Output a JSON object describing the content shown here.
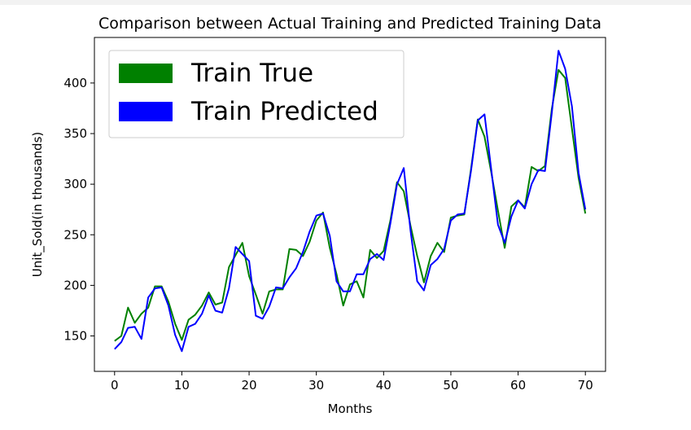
{
  "chart_data": {
    "type": "line",
    "title": "Comparison between Actual Training and Predicted Training Data",
    "xlabel": "Months",
    "ylabel": "Unit_Sold(in thousands)",
    "xlim": [
      -3,
      73
    ],
    "ylim": [
      115,
      445
    ],
    "xticks": [
      0,
      10,
      20,
      30,
      40,
      50,
      60,
      70
    ],
    "yticks": [
      150,
      200,
      250,
      300,
      350,
      400
    ],
    "legend_position": "top-left",
    "grid": false,
    "x": [
      0,
      1,
      2,
      3,
      4,
      5,
      6,
      7,
      8,
      9,
      10,
      11,
      12,
      13,
      14,
      15,
      16,
      17,
      18,
      19,
      20,
      21,
      22,
      23,
      24,
      25,
      26,
      27,
      28,
      29,
      30,
      31,
      32,
      33,
      34,
      35,
      36,
      37,
      38,
      39,
      40,
      41,
      42,
      43,
      44,
      45,
      46,
      47,
      48,
      49,
      50,
      51,
      52,
      53,
      54,
      55,
      56,
      57,
      58,
      59,
      60,
      61,
      62,
      63,
      64,
      65,
      66,
      67,
      68,
      69,
      70
    ],
    "series": [
      {
        "name": "Train True",
        "color": "#008000",
        "values": [
          145,
          150,
          178,
          163,
          172,
          178,
          199,
          199,
          184,
          162,
          146,
          166,
          171,
          180,
          193,
          181,
          183,
          218,
          230,
          242,
          209,
          191,
          172,
          194,
          196,
          196,
          236,
          235,
          229,
          243,
          264,
          272,
          237,
          211,
          180,
          201,
          204,
          188,
          235,
          227,
          234,
          264,
          302,
          293,
          259,
          229,
          203,
          229,
          242,
          233,
          267,
          269,
          270,
          315,
          364,
          347,
          312,
          274,
          237,
          278,
          284,
          277,
          317,
          313,
          318,
          374,
          413,
          405,
          355,
          306,
          271
        ]
      },
      {
        "name": "Train Predicted",
        "color": "#0000ff",
        "values": [
          137,
          144,
          158,
          159,
          147,
          188,
          197,
          198,
          180,
          151,
          135,
          159,
          162,
          172,
          190,
          175,
          173,
          197,
          238,
          231,
          224,
          170,
          167,
          179,
          198,
          197,
          208,
          217,
          233,
          253,
          269,
          271,
          249,
          204,
          194,
          194,
          211,
          211,
          226,
          231,
          225,
          261,
          300,
          316,
          254,
          204,
          195,
          220,
          226,
          236,
          264,
          270,
          271,
          313,
          363,
          369,
          315,
          260,
          242,
          268,
          284,
          276,
          300,
          314,
          313,
          370,
          432,
          414,
          377,
          311,
          275
        ]
      }
    ]
  }
}
